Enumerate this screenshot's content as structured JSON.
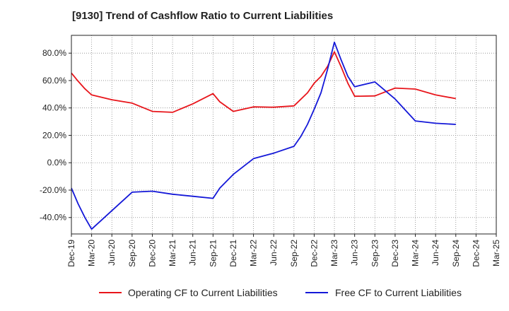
{
  "colors": {
    "operating": "#e8151b",
    "free": "#1418d8",
    "grid": "#888888",
    "axis": "#222222"
  },
  "chart_data": {
    "type": "line",
    "title": "[9130]  Trend of Cashflow Ratio to Current Liabilities",
    "xlabel": "",
    "ylabel": "",
    "x_ticks": [
      "Dec-19",
      "Mar-20",
      "Jun-20",
      "Sep-20",
      "Dec-20",
      "Mar-21",
      "Jun-21",
      "Sep-21",
      "Dec-21",
      "Mar-22",
      "Jun-22",
      "Sep-22",
      "Dec-22",
      "Mar-23",
      "Jun-23",
      "Sep-23",
      "Dec-23",
      "Mar-24",
      "Jun-24",
      "Sep-24",
      "Dec-24",
      "Mar-25"
    ],
    "x_range": [
      "2019-12",
      "2025-03"
    ],
    "y_ticks": [
      "80.0%",
      "60.0%",
      "40.0%",
      "20.0%",
      "0.0%",
      "-20.0%",
      "-40.0%"
    ],
    "y_tick_values": [
      80,
      60,
      40,
      20,
      0,
      -20,
      -40
    ],
    "ylim": [
      -52,
      93
    ],
    "grid": true,
    "legend_position": "bottom",
    "series": [
      {
        "name": "Operating CF to Current Liabilities",
        "color_key": "operating",
        "points": [
          [
            "2019-12",
            65.5
          ],
          [
            "2020-01",
            59.5
          ],
          [
            "2020-02",
            54.0
          ],
          [
            "2020-03",
            49.5
          ],
          [
            "2020-06",
            46.0
          ],
          [
            "2020-09",
            43.5
          ],
          [
            "2020-12",
            37.5
          ],
          [
            "2021-03",
            36.8
          ],
          [
            "2021-06",
            43.0
          ],
          [
            "2021-09",
            50.5
          ],
          [
            "2021-10",
            44.5
          ],
          [
            "2021-12",
            37.5
          ],
          [
            "2022-03",
            40.8
          ],
          [
            "2022-06",
            40.5
          ],
          [
            "2022-09",
            41.5
          ],
          [
            "2022-11",
            51.0
          ],
          [
            "2022-12",
            58.0
          ],
          [
            "2023-01",
            63.0
          ],
          [
            "2023-02",
            70.5
          ],
          [
            "2023-03",
            81.0
          ],
          [
            "2023-04",
            70.0
          ],
          [
            "2023-05",
            58.0
          ],
          [
            "2023-06",
            48.5
          ],
          [
            "2023-09",
            48.8
          ],
          [
            "2023-12",
            54.5
          ],
          [
            "2024-03",
            53.8
          ],
          [
            "2024-06",
            49.5
          ],
          [
            "2024-09",
            46.8
          ]
        ]
      },
      {
        "name": "Free CF to Current Liabilities",
        "color_key": "free",
        "points": [
          [
            "2019-12",
            -18.5
          ],
          [
            "2020-01",
            -30.0
          ],
          [
            "2020-02",
            -40.0
          ],
          [
            "2020-03",
            -48.5
          ],
          [
            "2020-06",
            -35.0
          ],
          [
            "2020-09",
            -21.5
          ],
          [
            "2020-12",
            -20.8
          ],
          [
            "2021-03",
            -23.0
          ],
          [
            "2021-06",
            -24.5
          ],
          [
            "2021-09",
            -26.0
          ],
          [
            "2021-10",
            -18.5
          ],
          [
            "2021-12",
            -8.5
          ],
          [
            "2022-03",
            3.0
          ],
          [
            "2022-06",
            7.0
          ],
          [
            "2022-09",
            12.0
          ],
          [
            "2022-10",
            19.0
          ],
          [
            "2022-11",
            28.0
          ],
          [
            "2022-12",
            39.0
          ],
          [
            "2023-01",
            51.0
          ],
          [
            "2023-02",
            68.5
          ],
          [
            "2023-03",
            88.0
          ],
          [
            "2023-04",
            75.0
          ],
          [
            "2023-05",
            63.0
          ],
          [
            "2023-06",
            55.5
          ],
          [
            "2023-09",
            59.0
          ],
          [
            "2023-12",
            46.5
          ],
          [
            "2024-03",
            30.5
          ],
          [
            "2024-06",
            28.8
          ],
          [
            "2024-09",
            28.0
          ]
        ]
      }
    ]
  }
}
